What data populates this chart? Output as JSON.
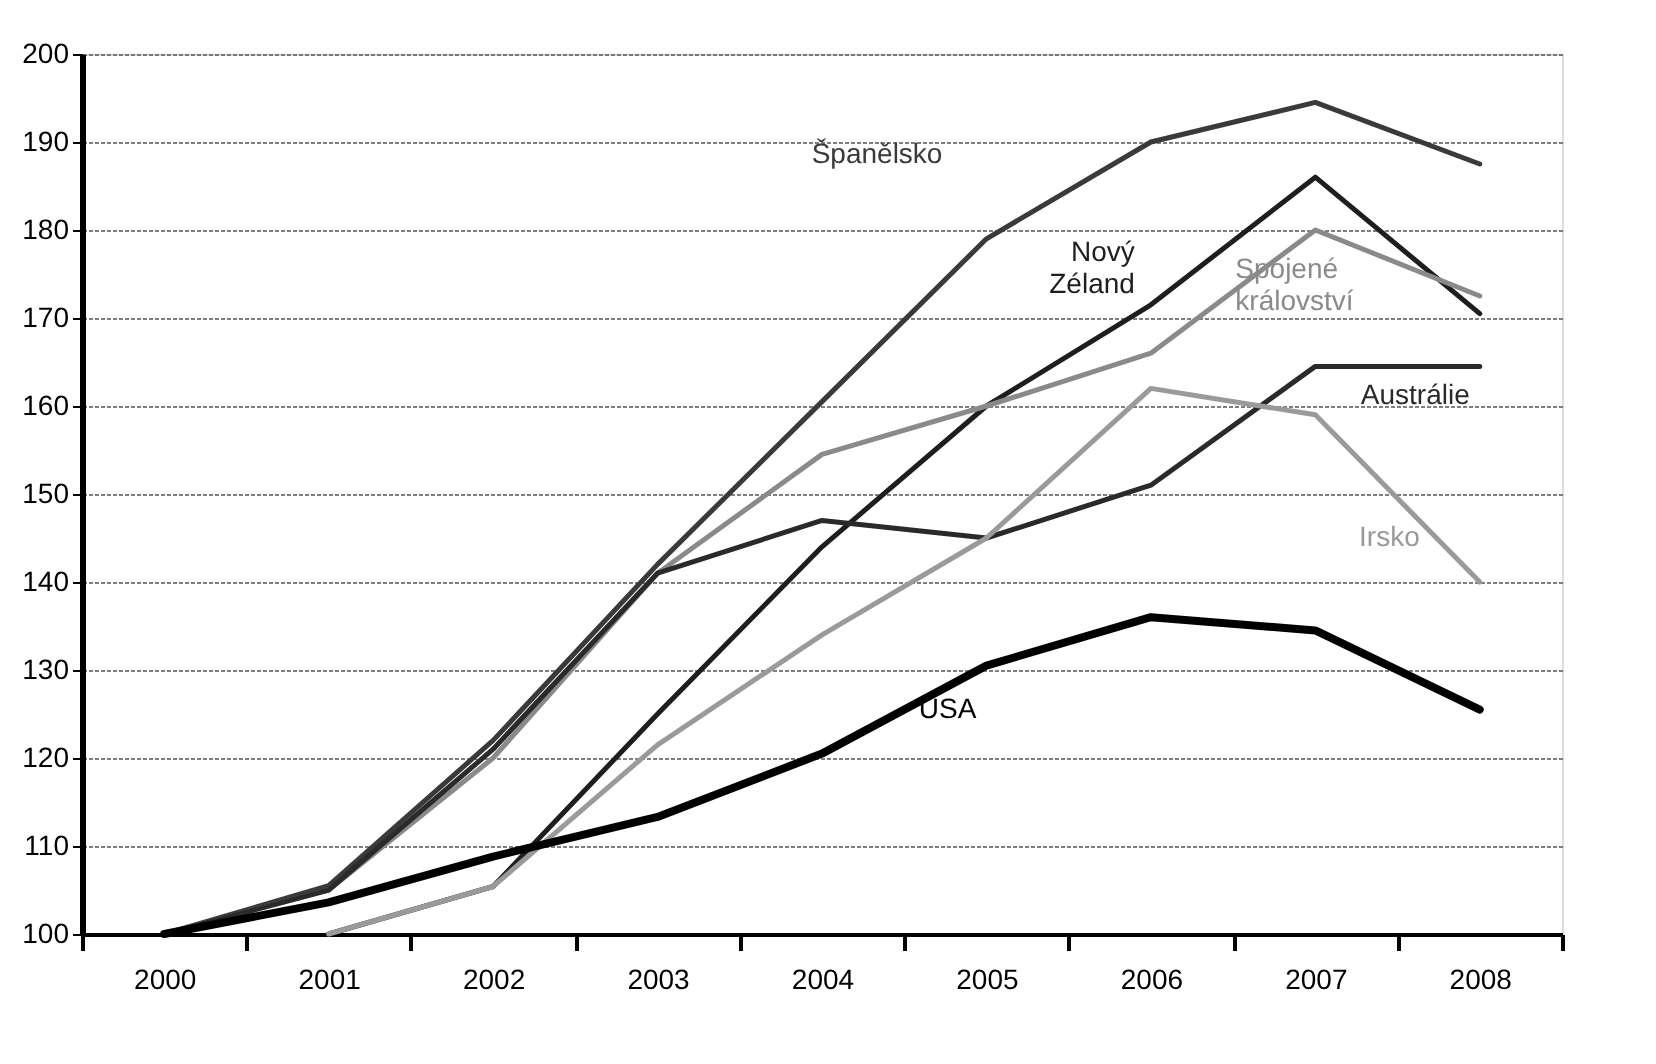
{
  "chart_data": {
    "type": "line",
    "categories": [
      "2000",
      "2001",
      "2002",
      "2003",
      "2004",
      "2005",
      "2006",
      "2007",
      "2008"
    ],
    "series": [
      {
        "name": "Španělsko",
        "color": "#3a3a3a",
        "values": [
          100,
          105.5,
          122,
          142,
          160.5,
          179,
          190,
          194.5,
          187.5
        ]
      },
      {
        "name": "Nový Zéland",
        "color": "#1e1e1e",
        "values": [
          null,
          100,
          105.4,
          125,
          144,
          160,
          171.5,
          186,
          170.5
        ]
      },
      {
        "name": "Spojené království",
        "color": "#8a8a8a",
        "values": [
          100,
          105,
          120,
          141,
          154.5,
          160,
          166,
          180,
          172.5
        ]
      },
      {
        "name": "Austrálie",
        "color": "#2a2a2a",
        "values": [
          100,
          105,
          121,
          141,
          147,
          145,
          151,
          164.5,
          164.5
        ]
      },
      {
        "name": "Irsko",
        "color": "#9a9a9a",
        "values": [
          null,
          100,
          105.4,
          121.5,
          134,
          145,
          162,
          159,
          140
        ]
      },
      {
        "name": "USA",
        "color": "#000000",
        "values": [
          100,
          103.6,
          108.8,
          113.3,
          120.5,
          130.5,
          136,
          134.5,
          125.5
        ]
      }
    ],
    "ylim": [
      100,
      200
    ],
    "yticks": [
      100,
      110,
      120,
      130,
      140,
      150,
      160,
      170,
      180,
      190,
      200
    ],
    "grid": "y"
  }
}
